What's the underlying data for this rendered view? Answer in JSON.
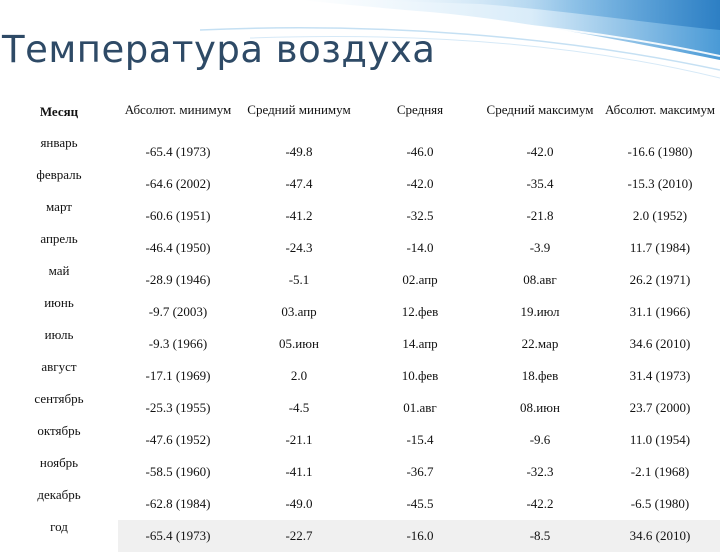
{
  "title": "Температура воздуха",
  "headers": {
    "month": "Месяц",
    "abs_min": "Абсолют. минимум",
    "avg_min": "Средний минимум",
    "avg": "Средняя",
    "avg_max": "Средний максимум",
    "abs_max": "Абсолют. максимум"
  },
  "rows": [
    {
      "month": "январь",
      "abs_min": "-65.4 (1973)",
      "avg_min": "-49.8",
      "avg": "-46.0",
      "avg_max": "-42.0",
      "abs_max": "-16.6 (1980)"
    },
    {
      "month": "февраль",
      "abs_min": "-64.6 (2002)",
      "avg_min": "-47.4",
      "avg": "-42.0",
      "avg_max": "-35.4",
      "abs_max": "-15.3 (2010)"
    },
    {
      "month": "март",
      "abs_min": "-60.6 (1951)",
      "avg_min": "-41.2",
      "avg": "-32.5",
      "avg_max": "-21.8",
      "abs_max": "2.0 (1952)"
    },
    {
      "month": "апрель",
      "abs_min": "-46.4 (1950)",
      "avg_min": "-24.3",
      "avg": "-14.0",
      "avg_max": "-3.9",
      "abs_max": "11.7 (1984)"
    },
    {
      "month": "май",
      "abs_min": "-28.9 (1946)",
      "avg_min": "-5.1",
      "avg": "02.апр",
      "avg_max": "08.авг",
      "abs_max": "26.2 (1971)"
    },
    {
      "month": "июнь",
      "abs_min": "-9.7 (2003)",
      "avg_min": "03.апр",
      "avg": "12.фев",
      "avg_max": "19.июл",
      "abs_max": "31.1 (1966)"
    },
    {
      "month": "июль",
      "abs_min": "-9.3 (1966)",
      "avg_min": "05.июн",
      "avg": "14.апр",
      "avg_max": "22.мар",
      "abs_max": "34.6 (2010)"
    },
    {
      "month": "август",
      "abs_min": "-17.1 (1969)",
      "avg_min": "2.0",
      "avg": "10.фев",
      "avg_max": "18.фев",
      "abs_max": "31.4 (1973)"
    },
    {
      "month": "сентябрь",
      "abs_min": "-25.3 (1955)",
      "avg_min": "-4.5",
      "avg": "01.авг",
      "avg_max": "08.июн",
      "abs_max": "23.7 (2000)"
    },
    {
      "month": "октябрь",
      "abs_min": "-47.6 (1952)",
      "avg_min": "-21.1",
      "avg": "-15.4",
      "avg_max": "-9.6",
      "abs_max": "11.0 (1954)"
    },
    {
      "month": "ноябрь",
      "abs_min": "-58.5 (1960)",
      "avg_min": "-41.1",
      "avg": "-36.7",
      "avg_max": "-32.3",
      "abs_max": "-2.1 (1968)"
    },
    {
      "month": "декабрь",
      "abs_min": "-62.8 (1984)",
      "avg_min": "-49.0",
      "avg": "-45.5",
      "avg_max": "-42.2",
      "abs_max": "-6.5 (1980)"
    },
    {
      "month": "год",
      "abs_min": "-65.4 (1973)",
      "avg_min": "-22.7",
      "avg": "-16.0",
      "avg_max": "-8.5",
      "abs_max": "34.6 (2010)"
    }
  ],
  "colors": {
    "title": "#2e4a66",
    "abs_min": "#111111",
    "avg_min": "#111111",
    "avg": "#0a6e0a",
    "avg_max": "#b0103a",
    "abs_max": "#a0179c",
    "accent_blue": "#3d8fd1"
  }
}
